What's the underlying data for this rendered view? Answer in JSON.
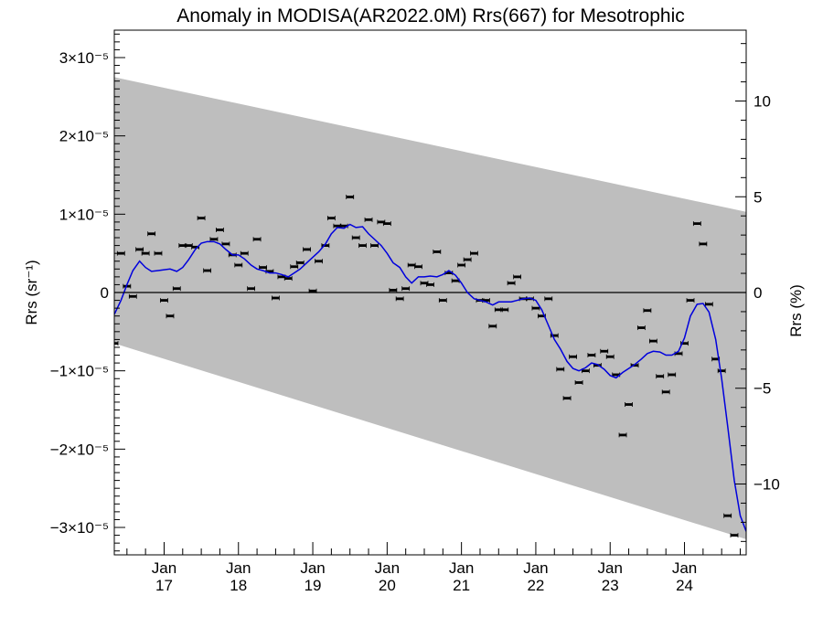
{
  "chart_data": {
    "type": "scatter",
    "title": "Anomaly in MODISA(AR2022.0M) Rrs(667) for Mesotrophic",
    "ylabel_left": "Rrs (sr⁻¹)",
    "ylabel_right": "Rrs (%)",
    "x_range": [
      2016.33,
      2024.83
    ],
    "ylim_left": [
      -3.35e-05,
      3.35e-05
    ],
    "ylim_right": [
      -13.7,
      13.7
    ],
    "x_ticks": [
      {
        "value": 2017.0,
        "month": "Jan",
        "year": "17"
      },
      {
        "value": 2018.0,
        "month": "Jan",
        "year": "18"
      },
      {
        "value": 2019.0,
        "month": "Jan",
        "year": "19"
      },
      {
        "value": 2020.0,
        "month": "Jan",
        "year": "20"
      },
      {
        "value": 2021.0,
        "month": "Jan",
        "year": "21"
      },
      {
        "value": 2022.0,
        "month": "Jan",
        "year": "22"
      },
      {
        "value": 2023.0,
        "month": "Jan",
        "year": "23"
      },
      {
        "value": 2024.0,
        "month": "Jan",
        "year": "24"
      }
    ],
    "y_ticks_left": [
      {
        "value": 3e-05,
        "label": "3×10⁻⁵"
      },
      {
        "value": 2e-05,
        "label": "2×10⁻⁵"
      },
      {
        "value": 1e-05,
        "label": "1×10⁻⁵"
      },
      {
        "value": 0,
        "label": "0"
      },
      {
        "value": -1e-05,
        "label": "−1×10⁻⁵"
      },
      {
        "value": -2e-05,
        "label": "−2×10⁻⁵"
      },
      {
        "value": -3e-05,
        "label": "−3×10⁻⁵"
      }
    ],
    "y_ticks_right": [
      {
        "value": 10,
        "label": "10"
      },
      {
        "value": 5,
        "label": "5"
      },
      {
        "value": 0,
        "label": "0"
      },
      {
        "value": -5,
        "label": "−5"
      },
      {
        "value": -10,
        "label": "−10"
      }
    ],
    "band": {
      "upper": [
        [
          2016.33,
          2.75e-05
        ],
        [
          2024.83,
          1.03e-05
        ]
      ],
      "lower": [
        [
          2016.33,
          -6.5e-06
        ],
        [
          2024.83,
          -3.15e-05
        ]
      ],
      "color": "#bebebe"
    },
    "points_color": "#000000",
    "line_color": "#0000dd",
    "points": [
      [
        2016.33,
        -6.5e-06
      ],
      [
        2016.42,
        5e-06
      ],
      [
        2016.5,
        8e-07
      ],
      [
        2016.58,
        -5e-07
      ],
      [
        2016.67,
        5.5e-06
      ],
      [
        2016.75,
        5e-06
      ],
      [
        2016.83,
        7.5e-06
      ],
      [
        2016.92,
        5e-06
      ],
      [
        2017.0,
        -1e-06
      ],
      [
        2017.08,
        -3e-06
      ],
      [
        2017.17,
        5e-07
      ],
      [
        2017.25,
        6e-06
      ],
      [
        2017.33,
        6e-06
      ],
      [
        2017.42,
        5.8e-06
      ],
      [
        2017.5,
        9.5e-06
      ],
      [
        2017.58,
        2.8e-06
      ],
      [
        2017.67,
        6.8e-06
      ],
      [
        2017.75,
        8e-06
      ],
      [
        2017.83,
        6.2e-06
      ],
      [
        2017.92,
        4.8e-06
      ],
      [
        2018.0,
        3.5e-06
      ],
      [
        2018.08,
        5e-06
      ],
      [
        2018.17,
        5e-07
      ],
      [
        2018.25,
        6.8e-06
      ],
      [
        2018.33,
        3.2e-06
      ],
      [
        2018.42,
        2.7e-06
      ],
      [
        2018.5,
        -7e-07
      ],
      [
        2018.58,
        2e-06
      ],
      [
        2018.67,
        1.8e-06
      ],
      [
        2018.75,
        3.3e-06
      ],
      [
        2018.83,
        3.8e-06
      ],
      [
        2018.92,
        5.5e-06
      ],
      [
        2019.0,
        2e-07
      ],
      [
        2019.08,
        4e-06
      ],
      [
        2019.17,
        6e-06
      ],
      [
        2019.25,
        9.5e-06
      ],
      [
        2019.33,
        8.5e-06
      ],
      [
        2019.42,
        8.5e-06
      ],
      [
        2019.5,
        1.22e-05
      ],
      [
        2019.58,
        7e-06
      ],
      [
        2019.67,
        6e-06
      ],
      [
        2019.75,
        9.3e-06
      ],
      [
        2019.83,
        6e-06
      ],
      [
        2019.92,
        9e-06
      ],
      [
        2020.0,
        8.8e-06
      ],
      [
        2020.08,
        3e-07
      ],
      [
        2020.17,
        -8e-07
      ],
      [
        2020.25,
        5e-07
      ],
      [
        2020.33,
        3.5e-06
      ],
      [
        2020.42,
        3.3e-06
      ],
      [
        2020.5,
        1.2e-06
      ],
      [
        2020.58,
        1e-06
      ],
      [
        2020.67,
        5.2e-06
      ],
      [
        2020.75,
        -1e-06
      ],
      [
        2020.83,
        2.5e-06
      ],
      [
        2020.92,
        1.5e-06
      ],
      [
        2021.0,
        3.5e-06
      ],
      [
        2021.08,
        4.2e-06
      ],
      [
        2021.17,
        5e-06
      ],
      [
        2021.25,
        -1e-06
      ],
      [
        2021.33,
        -1e-06
      ],
      [
        2021.42,
        -4.3e-06
      ],
      [
        2021.5,
        -2.2e-06
      ],
      [
        2021.58,
        -2.2e-06
      ],
      [
        2021.67,
        1.2e-06
      ],
      [
        2021.75,
        2e-06
      ],
      [
        2021.83,
        -8e-07
      ],
      [
        2021.92,
        -8e-07
      ],
      [
        2022.0,
        -2e-06
      ],
      [
        2022.08,
        -3e-06
      ],
      [
        2022.17,
        -8e-07
      ],
      [
        2022.25,
        -5.5e-06
      ],
      [
        2022.33,
        -9.8e-06
      ],
      [
        2022.42,
        -1.35e-05
      ],
      [
        2022.5,
        -8.2e-06
      ],
      [
        2022.58,
        -1.15e-05
      ],
      [
        2022.67,
        -1e-05
      ],
      [
        2022.75,
        -8e-06
      ],
      [
        2022.83,
        -9.3e-06
      ],
      [
        2022.92,
        -7.5e-06
      ],
      [
        2023.0,
        -8.2e-06
      ],
      [
        2023.08,
        -1.05e-05
      ],
      [
        2023.17,
        -1.82e-05
      ],
      [
        2023.25,
        -1.43e-05
      ],
      [
        2023.33,
        -9.3e-06
      ],
      [
        2023.42,
        -4.5e-06
      ],
      [
        2023.5,
        -2.3e-06
      ],
      [
        2023.58,
        -6.2e-06
      ],
      [
        2023.67,
        -1.07e-05
      ],
      [
        2023.75,
        -1.27e-05
      ],
      [
        2023.83,
        -1.05e-05
      ],
      [
        2023.92,
        -7.8e-06
      ],
      [
        2024.0,
        -6.5e-06
      ],
      [
        2024.08,
        -1e-06
      ],
      [
        2024.17,
        8.8e-06
      ],
      [
        2024.25,
        6.2e-06
      ],
      [
        2024.33,
        -1.5e-06
      ],
      [
        2024.42,
        -8.5e-06
      ],
      [
        2024.5,
        -1e-05
      ],
      [
        2024.58,
        -2.85e-05
      ],
      [
        2024.67,
        -3.1e-05
      ]
    ],
    "line": [
      [
        2016.33,
        -2.8e-06
      ],
      [
        2016.42,
        -1e-06
      ],
      [
        2016.5,
        1e-06
      ],
      [
        2016.58,
        2.8e-06
      ],
      [
        2016.67,
        4e-06
      ],
      [
        2016.75,
        3.2e-06
      ],
      [
        2016.83,
        2.7e-06
      ],
      [
        2016.92,
        2.8e-06
      ],
      [
        2017.0,
        2.9e-06
      ],
      [
        2017.08,
        3e-06
      ],
      [
        2017.17,
        2.7e-06
      ],
      [
        2017.25,
        3.2e-06
      ],
      [
        2017.33,
        4.2e-06
      ],
      [
        2017.42,
        5.5e-06
      ],
      [
        2017.5,
        6.3e-06
      ],
      [
        2017.58,
        6.5e-06
      ],
      [
        2017.67,
        6.5e-06
      ],
      [
        2017.75,
        6.2e-06
      ],
      [
        2017.83,
        5.5e-06
      ],
      [
        2017.92,
        4.8e-06
      ],
      [
        2018.0,
        4.8e-06
      ],
      [
        2018.08,
        4.3e-06
      ],
      [
        2018.17,
        3.5e-06
      ],
      [
        2018.25,
        3e-06
      ],
      [
        2018.33,
        2.8e-06
      ],
      [
        2018.42,
        2.5e-06
      ],
      [
        2018.5,
        2.5e-06
      ],
      [
        2018.58,
        2.3e-06
      ],
      [
        2018.67,
        2e-06
      ],
      [
        2018.75,
        2.5e-06
      ],
      [
        2018.83,
        3e-06
      ],
      [
        2018.92,
        3.8e-06
      ],
      [
        2019.0,
        4.5e-06
      ],
      [
        2019.08,
        5.2e-06
      ],
      [
        2019.17,
        6.2e-06
      ],
      [
        2019.25,
        7.5e-06
      ],
      [
        2019.33,
        8.3e-06
      ],
      [
        2019.42,
        8.2e-06
      ],
      [
        2019.5,
        8.7e-06
      ],
      [
        2019.58,
        8.3e-06
      ],
      [
        2019.67,
        8.4e-06
      ],
      [
        2019.75,
        7.5e-06
      ],
      [
        2019.83,
        6.8e-06
      ],
      [
        2019.92,
        6e-06
      ],
      [
        2020.0,
        5e-06
      ],
      [
        2020.08,
        3.8e-06
      ],
      [
        2020.17,
        3.2e-06
      ],
      [
        2020.25,
        2e-06
      ],
      [
        2020.33,
        1.2e-06
      ],
      [
        2020.42,
        2e-06
      ],
      [
        2020.5,
        2e-06
      ],
      [
        2020.58,
        2.1e-06
      ],
      [
        2020.67,
        2e-06
      ],
      [
        2020.75,
        2.3e-06
      ],
      [
        2020.83,
        2.8e-06
      ],
      [
        2020.92,
        2.2e-06
      ],
      [
        2021.0,
        1.2e-06
      ],
      [
        2021.08,
        0.0
      ],
      [
        2021.17,
        -8e-07
      ],
      [
        2021.25,
        -1e-06
      ],
      [
        2021.33,
        -1.2e-06
      ],
      [
        2021.42,
        -1.6e-06
      ],
      [
        2021.5,
        -1.2e-06
      ],
      [
        2021.58,
        -1.2e-06
      ],
      [
        2021.67,
        -1.2e-06
      ],
      [
        2021.75,
        -1e-06
      ],
      [
        2021.83,
        -8e-07
      ],
      [
        2021.92,
        -7e-07
      ],
      [
        2022.0,
        -1e-06
      ],
      [
        2022.08,
        -2.2e-06
      ],
      [
        2022.17,
        -4.2e-06
      ],
      [
        2022.25,
        -6e-06
      ],
      [
        2022.33,
        -7.2e-06
      ],
      [
        2022.42,
        -8.8e-06
      ],
      [
        2022.5,
        -9.7e-06
      ],
      [
        2022.58,
        -1e-05
      ],
      [
        2022.67,
        -9.6e-06
      ],
      [
        2022.75,
        -9e-06
      ],
      [
        2022.83,
        -9.2e-06
      ],
      [
        2022.92,
        -9.8e-06
      ],
      [
        2023.0,
        -1.06e-05
      ],
      [
        2023.08,
        -1.09e-05
      ],
      [
        2023.17,
        -1.02e-05
      ],
      [
        2023.25,
        -9.7e-06
      ],
      [
        2023.33,
        -9.2e-06
      ],
      [
        2023.42,
        -8.5e-06
      ],
      [
        2023.5,
        -7.8e-06
      ],
      [
        2023.58,
        -7.5e-06
      ],
      [
        2023.67,
        -7.6e-06
      ],
      [
        2023.75,
        -8e-06
      ],
      [
        2023.83,
        -8e-06
      ],
      [
        2023.92,
        -7.5e-06
      ],
      [
        2024.0,
        -5.8e-06
      ],
      [
        2024.08,
        -3e-06
      ],
      [
        2024.17,
        -1.5e-06
      ],
      [
        2024.25,
        -1.4e-06
      ],
      [
        2024.33,
        -2.5e-06
      ],
      [
        2024.42,
        -6e-06
      ],
      [
        2024.5,
        -1.1e-05
      ],
      [
        2024.58,
        -1.7e-05
      ],
      [
        2024.67,
        -2.4e-05
      ],
      [
        2024.75,
        -2.85e-05
      ],
      [
        2024.83,
        -3.05e-05
      ]
    ]
  }
}
